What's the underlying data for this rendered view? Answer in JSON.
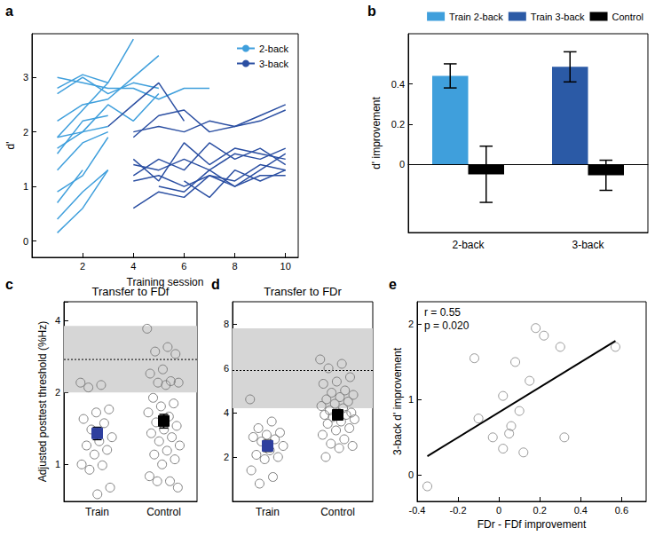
{
  "chart_data": [
    {
      "panel_label": "a",
      "type": "line",
      "x_label": "Training session",
      "y_label": "d'",
      "xlim": [
        0,
        10.5
      ],
      "xticks": [
        2,
        4,
        6,
        8,
        10
      ],
      "ylim": [
        -0.3,
        3.8
      ],
      "yticks": [
        0,
        1,
        2,
        3
      ],
      "legend": "upper right",
      "series": [
        {
          "name": "2-back",
          "color": "#3f9fdc",
          "x": [
            1,
            2,
            3
          ],
          "values": [
            0.15,
            0.6,
            1.3
          ]
        },
        {
          "name": "2-back",
          "color": "#3f9fdc",
          "x": [
            1,
            2,
            3
          ],
          "values": [
            0.4,
            0.9,
            1.3
          ]
        },
        {
          "name": "2-back",
          "color": "#3f9fdc",
          "x": [
            1,
            2,
            3
          ],
          "values": [
            0.9,
            1.2,
            1.9
          ]
        },
        {
          "name": "2-back",
          "color": "#3f9fdc",
          "x": [
            1,
            2,
            3
          ],
          "values": [
            1.3,
            1.8,
            2.0
          ]
        },
        {
          "name": "2-back",
          "color": "#3f9fdc",
          "x": [
            1,
            2,
            3
          ],
          "values": [
            1.6,
            2.2,
            2.3
          ]
        },
        {
          "name": "2-back",
          "color": "#3f9fdc",
          "x": [
            1,
            2,
            3
          ],
          "values": [
            1.9,
            2.0,
            2.1
          ]
        },
        {
          "name": "2-back",
          "color": "#3f9fdc",
          "x": [
            1,
            2,
            3,
            4
          ],
          "values": [
            1.9,
            2.4,
            2.9,
            3.7
          ]
        },
        {
          "name": "2-back",
          "color": "#3f9fdc",
          "x": [
            1,
            2,
            3,
            4,
            5
          ],
          "values": [
            2.2,
            2.5,
            2.6,
            3.0,
            3.4
          ]
        },
        {
          "name": "2-back",
          "color": "#3f9fdc",
          "x": [
            1,
            2,
            3,
            4,
            5
          ],
          "values": [
            2.7,
            3.0,
            2.7,
            2.9,
            2.8
          ]
        },
        {
          "name": "2-back",
          "color": "#3f9fdc",
          "x": [
            1,
            2,
            3
          ],
          "values": [
            2.8,
            3.05,
            2.9
          ]
        },
        {
          "name": "2-back",
          "color": "#3f9fdc",
          "x": [
            1,
            2,
            3,
            4,
            5,
            6,
            7
          ],
          "values": [
            3.0,
            2.9,
            2.8,
            2.8,
            2.6,
            2.8,
            2.8
          ]
        },
        {
          "name": "2-back",
          "color": "#3f9fdc",
          "x": [
            1,
            2,
            3,
            4,
            5
          ],
          "values": [
            1.7,
            2.0,
            2.5,
            2.2,
            2.7
          ]
        },
        {
          "name": "2-back",
          "color": "#3f9fdc",
          "x": [
            1,
            2
          ],
          "values": [
            0.7,
            1.3
          ]
        },
        {
          "name": "3-back",
          "color": "#2b4fa2",
          "x": [
            4,
            5,
            6,
            7,
            8,
            9,
            10
          ],
          "values": [
            1.1,
            1.2,
            1.0,
            1.2,
            1.1,
            1.4,
            1.3
          ]
        },
        {
          "name": "3-back",
          "color": "#2b4fa2",
          "x": [
            4,
            5,
            6,
            7,
            8,
            9,
            10
          ],
          "values": [
            1.4,
            1.3,
            1.5,
            1.3,
            1.6,
            1.5,
            1.7
          ]
        },
        {
          "name": "3-back",
          "color": "#2b4fa2",
          "x": [
            4,
            5,
            6,
            7,
            8,
            9,
            10
          ],
          "values": [
            0.6,
            0.9,
            0.8,
            1.2,
            1.0,
            1.3,
            1.6
          ]
        },
        {
          "name": "3-back",
          "color": "#2b4fa2",
          "x": [
            4,
            5,
            6,
            7,
            8,
            9,
            10
          ],
          "values": [
            1.5,
            1.1,
            1.8,
            1.4,
            1.7,
            1.6,
            1.5
          ]
        },
        {
          "name": "3-back",
          "color": "#2b4fa2",
          "x": [
            4,
            5,
            6,
            7,
            8,
            9,
            10
          ],
          "values": [
            2.0,
            2.1,
            2.0,
            2.2,
            2.1,
            2.3,
            2.5
          ]
        },
        {
          "name": "3-back",
          "color": "#2b4fa2",
          "x": [
            3,
            4,
            5,
            6
          ],
          "values": [
            2.1,
            2.5,
            2.9,
            2.2
          ]
        },
        {
          "name": "3-back",
          "color": "#2b4fa2",
          "x": [
            4,
            5,
            6,
            7,
            8,
            9,
            10
          ],
          "values": [
            1.9,
            2.3,
            2.4,
            2.0,
            2.1,
            2.2,
            2.4
          ]
        },
        {
          "name": "3-back",
          "color": "#2b4fa2",
          "x": [
            5,
            6,
            7,
            8,
            9,
            10
          ],
          "values": [
            1.0,
            0.9,
            1.3,
            1.0,
            1.2,
            1.2
          ]
        },
        {
          "name": "3-back",
          "color": "#2b4fa2",
          "x": [
            4,
            5,
            6,
            7,
            8,
            9,
            10
          ],
          "values": [
            1.2,
            1.5,
            1.3,
            1.8,
            1.5,
            1.7,
            1.4
          ]
        },
        {
          "name": "3-back",
          "color": "#2b4fa2",
          "x": [
            6,
            7,
            8,
            9,
            10
          ],
          "values": [
            1.1,
            0.8,
            1.3,
            1.1,
            1.3
          ]
        }
      ]
    },
    {
      "panel_label": "b",
      "type": "bar",
      "y_label": "d' improvement",
      "categories": [
        "2-back",
        "3-back"
      ],
      "ylim": [
        -0.34,
        0.65
      ],
      "yticks": [
        0,
        0.2,
        0.4
      ],
      "legend": "top",
      "series": [
        {
          "name": "Train 2-back",
          "color": "#3f9fdc",
          "values": [
            0.44,
            null
          ],
          "errors": [
            0.06,
            null
          ]
        },
        {
          "name": "Train 3-back",
          "color": "#2b5aa6",
          "values": [
            null,
            0.485
          ],
          "errors": [
            null,
            0.075
          ]
        },
        {
          "name": "Control",
          "color": "#000000",
          "values": [
            -0.05,
            -0.055
          ],
          "errors": [
            0.14,
            0.075
          ]
        }
      ]
    },
    {
      "panel_label": "c",
      "type": "scatter",
      "title": "Transfer to FDf",
      "y_label": "Adjusted posttest threshold (%Hz)",
      "log": "y",
      "categories": [
        "Train",
        "Control"
      ],
      "ylim": [
        0.7,
        4.8
      ],
      "yticks": [
        1,
        2,
        4
      ],
      "color": "#808080",
      "marker": "circle",
      "points": [
        [
          2.2,
          2.15,
          2.1,
          1.7,
          1.65,
          1.55,
          1.5,
          1.4,
          1.3,
          1.25,
          1.2,
          1.15,
          1.1,
          1.0,
          1.0,
          0.95,
          0.8,
          0.75
        ],
        [
          3.7,
          3.1,
          3.0,
          2.9,
          2.5,
          2.4,
          2.25,
          2.2,
          2.2,
          2.15,
          1.9,
          1.8,
          1.75,
          1.65,
          1.6,
          1.5,
          1.45,
          1.4,
          1.35,
          1.3,
          1.25,
          1.2,
          1.15,
          1.1,
          1.05,
          1.0,
          0.9,
          0.85,
          0.85,
          0.8
        ]
      ],
      "means": [
        1.35,
        1.52
      ],
      "mean_errors": [
        0.08,
        0.1
      ],
      "mean_colors": [
        "#2e3f9e",
        "#000000"
      ],
      "reference": {
        "low": 2.0,
        "high": 3.8,
        "mean": 2.75
      }
    },
    {
      "panel_label": "d",
      "type": "scatter",
      "title": "Transfer to FDr",
      "categories": [
        "Train",
        "Control"
      ],
      "ylim": [
        0,
        9
      ],
      "yticks": [
        2,
        4,
        6,
        8
      ],
      "color": "#808080",
      "marker": "circle",
      "points": [
        [
          4.6,
          3.6,
          3.3,
          3.1,
          3.0,
          2.9,
          2.8,
          2.7,
          2.5,
          2.3,
          2.1,
          2.0,
          1.9,
          1.4,
          1.1,
          0.8
        ],
        [
          6.4,
          6.2,
          6.0,
          5.6,
          5.4,
          5.3,
          5.0,
          4.9,
          4.8,
          4.7,
          4.6,
          4.5,
          4.4,
          4.3,
          4.2,
          4.1,
          4.0,
          4.0,
          3.9,
          3.9,
          3.8,
          3.7,
          3.6,
          3.5,
          3.3,
          3.2,
          3.0,
          2.8,
          2.6,
          2.5,
          2.4,
          2.0
        ]
      ],
      "means": [
        2.5,
        3.9
      ],
      "mean_errors": [
        0.25,
        0.2
      ],
      "mean_colors": [
        "#2e3f9e",
        "#000000"
      ],
      "reference": {
        "low": 4.2,
        "high": 7.8,
        "mean": 5.9
      }
    },
    {
      "panel_label": "e",
      "type": "scatter",
      "x_label": "FDr - FDf improvement",
      "y_label": "3-back d' improvement",
      "xlim": [
        -0.4,
        0.72
      ],
      "xticks": [
        -0.4,
        -0.2,
        0,
        0.2,
        0.4,
        0.6
      ],
      "ylim": [
        -0.35,
        2.3
      ],
      "yticks": [
        0,
        1,
        2
      ],
      "annotations": [
        "r = 0.55",
        "p = 0.020"
      ],
      "color": "#808080",
      "marker": "circle",
      "x": [
        -0.35,
        -0.12,
        -0.1,
        -0.03,
        0.02,
        0.02,
        0.05,
        0.06,
        0.08,
        0.1,
        0.12,
        0.15,
        0.18,
        0.22,
        0.3,
        0.32,
        0.57
      ],
      "values": [
        -0.15,
        1.55,
        0.75,
        0.5,
        1.05,
        0.35,
        0.55,
        0.65,
        1.5,
        0.85,
        0.3,
        1.25,
        1.95,
        1.85,
        1.7,
        0.5,
        1.7
      ],
      "fit": {
        "x": [
          -0.35,
          0.57
        ],
        "values": [
          0.25,
          1.78
        ]
      }
    }
  ]
}
